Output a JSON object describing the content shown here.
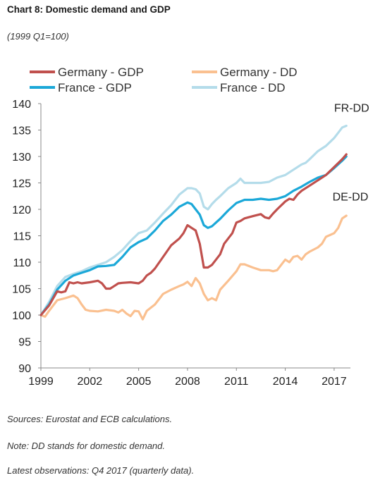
{
  "title": "Chart 8: Domestic demand and GDP",
  "subtitle": "(1999 Q1=100)",
  "notes": [
    "Sources: Eurostat and ECB calculations.",
    "Note: DD stands for domestic demand.",
    "Latest observations: Q4 2017 (quarterly data)."
  ],
  "chart_data": {
    "type": "line",
    "xlabel": "",
    "ylabel": "",
    "ylim": [
      90,
      140
    ],
    "yticks": [
      90,
      95,
      100,
      105,
      110,
      115,
      120,
      125,
      130,
      135,
      140
    ],
    "xlim": [
      1999.0,
      2018.0
    ],
    "xticks": [
      1999,
      2002,
      2005,
      2008,
      2011,
      2014,
      2017
    ],
    "grid": false,
    "legend_position": "top",
    "annotations": [
      {
        "text": "FR-DD",
        "x": 2017.0,
        "y": 138.5
      },
      {
        "text": "DE-DD",
        "x": 2016.9,
        "y": 121.7
      }
    ],
    "series": [
      {
        "name": "Germany - GDP",
        "color": "#c0504d",
        "x": [
          1999.0,
          1999.5,
          2000.0,
          2000.25,
          2000.5,
          2000.75,
          2001.0,
          2001.25,
          2001.5,
          2002.0,
          2002.5,
          2002.75,
          2003.0,
          2003.25,
          2003.5,
          2003.75,
          2004.0,
          2004.5,
          2005.0,
          2005.25,
          2005.5,
          2005.75,
          2006.0,
          2006.5,
          2007.0,
          2007.5,
          2007.75,
          2008.0,
          2008.25,
          2008.5,
          2008.75,
          2009.0,
          2009.25,
          2009.5,
          2009.75,
          2010.0,
          2010.25,
          2010.5,
          2010.75,
          2011.0,
          2011.25,
          2011.5,
          2012.0,
          2012.5,
          2012.75,
          2013.0,
          2013.25,
          2013.5,
          2014.0,
          2014.25,
          2014.5,
          2014.75,
          2015.0,
          2015.5,
          2016.0,
          2016.5,
          2017.0,
          2017.5,
          2017.75
        ],
        "values": [
          100.0,
          101.8,
          104.5,
          104.3,
          104.5,
          106.2,
          106.0,
          106.2,
          106.0,
          106.2,
          106.5,
          106.0,
          105.0,
          105.0,
          105.5,
          106.0,
          106.1,
          106.2,
          106.0,
          106.5,
          107.5,
          108.0,
          108.8,
          111.0,
          113.2,
          114.5,
          115.5,
          117.0,
          116.5,
          116.0,
          113.5,
          109.0,
          109.0,
          109.5,
          110.5,
          111.5,
          113.5,
          114.5,
          115.5,
          117.5,
          117.8,
          118.3,
          118.7,
          119.1,
          118.5,
          118.3,
          119.2,
          120.0,
          121.5,
          122.0,
          121.8,
          122.8,
          123.5,
          124.5,
          125.5,
          126.5,
          128.0,
          129.5,
          130.4
        ]
      },
      {
        "name": "Germany - DD",
        "color": "#fac090",
        "x": [
          1999.0,
          1999.25,
          1999.5,
          2000.0,
          2000.5,
          2001.0,
          2001.25,
          2001.5,
          2001.75,
          2002.0,
          2002.5,
          2003.0,
          2003.5,
          2003.75,
          2004.0,
          2004.25,
          2004.5,
          2004.75,
          2005.0,
          2005.25,
          2005.5,
          2006.0,
          2006.5,
          2007.0,
          2007.5,
          2007.75,
          2008.0,
          2008.25,
          2008.5,
          2008.75,
          2009.0,
          2009.25,
          2009.5,
          2009.75,
          2010.0,
          2010.5,
          2011.0,
          2011.25,
          2011.5,
          2012.0,
          2012.5,
          2013.0,
          2013.25,
          2013.5,
          2014.0,
          2014.25,
          2014.5,
          2014.75,
          2015.0,
          2015.25,
          2015.5,
          2016.0,
          2016.25,
          2016.5,
          2017.0,
          2017.25,
          2017.5,
          2017.75
        ],
        "values": [
          100.0,
          99.7,
          100.8,
          102.8,
          103.2,
          103.7,
          103.2,
          102.0,
          101.0,
          100.8,
          100.7,
          101.0,
          100.8,
          100.5,
          101.0,
          100.3,
          99.8,
          100.8,
          100.7,
          99.2,
          100.8,
          102.0,
          104.0,
          104.8,
          105.5,
          105.8,
          106.3,
          105.5,
          107.0,
          106.0,
          104.0,
          102.8,
          103.2,
          102.8,
          104.8,
          106.5,
          108.3,
          109.6,
          109.6,
          109.0,
          108.5,
          108.5,
          108.3,
          108.5,
          110.5,
          110.0,
          111.0,
          111.2,
          110.5,
          111.5,
          112.0,
          112.8,
          113.5,
          114.8,
          115.5,
          116.5,
          118.3,
          118.8
        ]
      },
      {
        "name": "France - GDP",
        "color": "#1ba8d8",
        "x": [
          1999.0,
          1999.5,
          2000.0,
          2000.5,
          2001.0,
          2001.5,
          2002.0,
          2002.5,
          2003.0,
          2003.5,
          2004.0,
          2004.5,
          2005.0,
          2005.5,
          2006.0,
          2006.5,
          2007.0,
          2007.5,
          2008.0,
          2008.25,
          2008.5,
          2008.75,
          2009.0,
          2009.25,
          2009.5,
          2009.75,
          2010.0,
          2010.5,
          2011.0,
          2011.5,
          2012.0,
          2012.5,
          2013.0,
          2013.5,
          2014.0,
          2014.5,
          2015.0,
          2015.5,
          2016.0,
          2016.5,
          2017.0,
          2017.5,
          2017.75
        ],
        "values": [
          100.0,
          102.0,
          104.8,
          106.5,
          107.5,
          108.0,
          108.5,
          109.2,
          109.3,
          109.5,
          111.0,
          112.8,
          113.8,
          114.5,
          116.0,
          117.8,
          119.0,
          120.5,
          121.3,
          121.0,
          120.0,
          119.0,
          117.0,
          116.5,
          116.8,
          117.5,
          118.2,
          119.8,
          121.2,
          121.8,
          121.8,
          122.0,
          121.8,
          122.0,
          122.5,
          123.5,
          124.3,
          125.2,
          126.0,
          126.5,
          127.8,
          129.2,
          130.0
        ]
      },
      {
        "name": "France - DD",
        "color": "#b4dcea",
        "x": [
          1999.0,
          1999.5,
          2000.0,
          2000.5,
          2001.0,
          2001.5,
          2002.0,
          2002.5,
          2003.0,
          2003.5,
          2004.0,
          2004.5,
          2005.0,
          2005.5,
          2006.0,
          2006.5,
          2007.0,
          2007.5,
          2008.0,
          2008.25,
          2008.5,
          2008.75,
          2009.0,
          2009.25,
          2009.5,
          2009.75,
          2010.0,
          2010.5,
          2011.0,
          2011.25,
          2011.5,
          2012.0,
          2012.5,
          2013.0,
          2013.5,
          2014.0,
          2014.5,
          2015.0,
          2015.25,
          2015.5,
          2016.0,
          2016.5,
          2017.0,
          2017.25,
          2017.5,
          2017.75
        ],
        "values": [
          100.0,
          102.5,
          105.5,
          107.2,
          107.8,
          108.3,
          109.0,
          109.5,
          110.0,
          111.0,
          112.3,
          114.0,
          115.5,
          116.0,
          117.5,
          119.2,
          120.8,
          122.8,
          124.0,
          124.0,
          123.8,
          123.0,
          120.5,
          120.0,
          121.0,
          121.8,
          122.5,
          124.0,
          125.0,
          125.8,
          125.0,
          125.0,
          125.0,
          125.2,
          126.0,
          126.5,
          127.5,
          128.5,
          128.8,
          129.5,
          131.0,
          132.0,
          133.5,
          134.5,
          135.5,
          135.8
        ]
      }
    ]
  }
}
